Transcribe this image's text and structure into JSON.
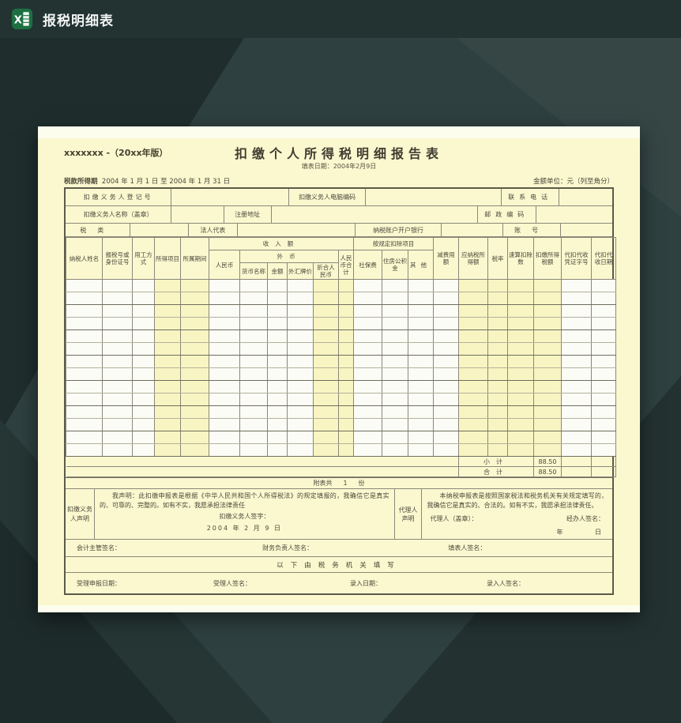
{
  "window": {
    "title": "报税明细表",
    "icon_letter": "X"
  },
  "colors": {
    "topbar": "#223332",
    "background": "#2e403f",
    "paper": "#fbf8d0",
    "excel_green": "#1d6f42",
    "cell_white": "#fcfcf6",
    "cell_yellow": "#f9f5c2"
  },
  "page": {
    "version_note": "xxxxxxx -（20xx年版）",
    "title": "扣缴个人所得税明细报告表",
    "fill_date": "填表日期：2004年2月9日",
    "period_label": "税款所得期",
    "period_value": "2004 年 1 月 1 日 至 2004 年 1 月 31 日",
    "amount_unit": "金额单位：元（列至角分）"
  },
  "info": {
    "registration_label": "扣缴义务人登记号",
    "computer_code_label": "扣缴义务人电脑编码",
    "phone_label": "联系电话",
    "name_label": "扣缴义务人名称（盖章）",
    "address_label": "注册地址",
    "postcode_label": "邮政编码",
    "tax_type_label": "税类",
    "legal_rep_label": "法人代表",
    "bank_label": "纳税账户开户银行",
    "account_label": "账号"
  },
  "main": {
    "groups": {
      "income": "收入额",
      "foreign_currency": "外币",
      "deduction_items": "按规定扣除项目"
    },
    "cols": [
      "纳税人姓名",
      "报税号或身份证号",
      "用工方式",
      "所得项目",
      "所属期间",
      "人民币",
      "货币名称",
      "金额",
      "外汇牌价",
      "折合人民币",
      "人民币合计",
      "社保费",
      "住房公积金",
      "其他",
      "减费用额",
      "应纳税所得额",
      "税率",
      "速算扣除数",
      "扣缴所得税额",
      "代扣代收凭证字号",
      "代扣代收日期"
    ],
    "data_row_count": 14,
    "subtotal_label": "小计",
    "subtotal_value": "88.50",
    "total_label": "合计",
    "total_value": "88.50",
    "attach_prefix": "附表共",
    "attach_count": "1",
    "attach_suffix": "份"
  },
  "declaration": {
    "withholder_label": "扣缴义务人声明",
    "withholder_text": "我声明：此扣缴申报表是根据《中华人民共和国个人所得税法》的规定填报的，我确信它是真实的、可靠的、完整的。如有不实，我愿承担法律责任",
    "withholder_sign_label": "扣缴义务人签字：",
    "withholder_date": "2004 年 2 月 9 日",
    "agent_label": "代理人声明",
    "agent_text": "本纳税申报表是按照国家税法和税务机关有关规定填写的，我确信它是真实的、合法的。如有不实，我愿承担法律责任。",
    "agent_seal_label": "代理人（盖章）：",
    "agent_handler_label": "经办人签名：",
    "agent_date_year": "年",
    "agent_date_day": "日"
  },
  "signatures": {
    "chief_accountant": "会计主管签名：",
    "finance_head": "财务负责人签名：",
    "preparer": "填表人签名：",
    "tax_authority_header": "以下由税务机关填写",
    "accept_date": "受理申报日期：",
    "acceptor": "受理人签名：",
    "entry_date": "录入日期：",
    "entry_person": "录入人签名："
  }
}
